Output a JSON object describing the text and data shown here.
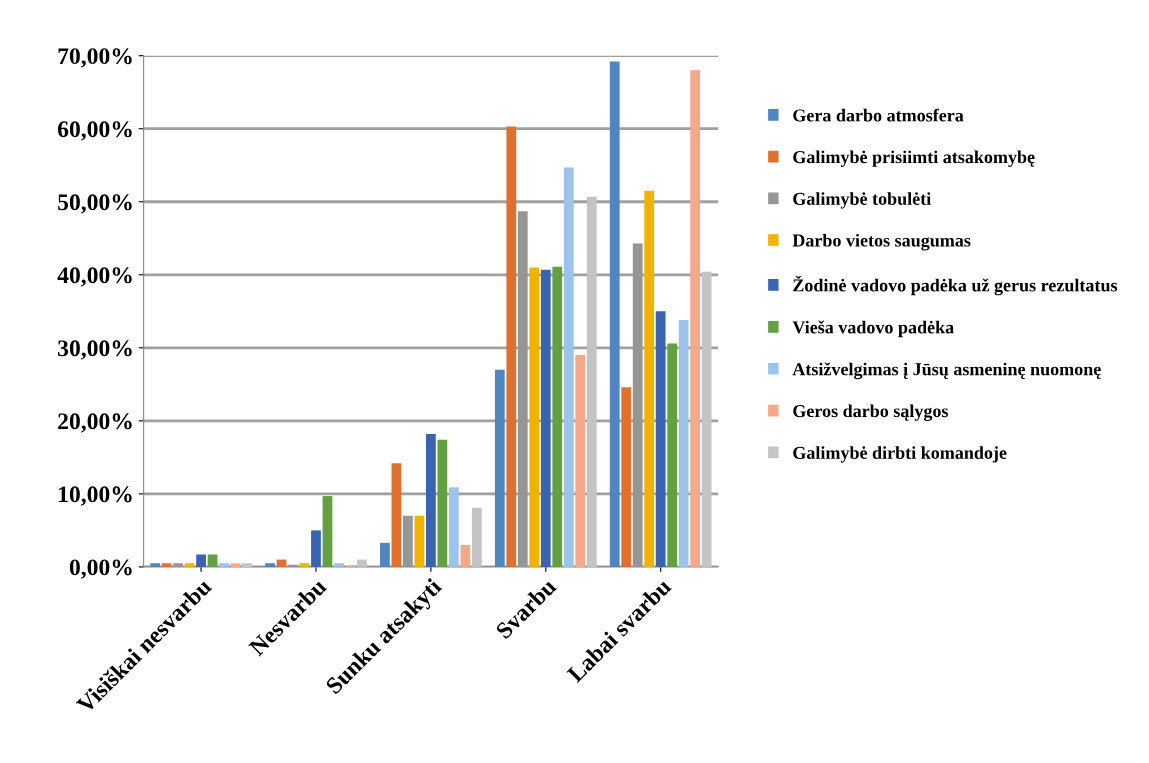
{
  "chart_data": {
    "type": "bar",
    "categories": [
      "Visiškai nesvarbu",
      "Nesvarbu",
      "Sunku atsakyti",
      "Svarbu",
      "Labai svarbu"
    ],
    "series": [
      {
        "name": "Gera darbo atmosfera",
        "color": "#4f86c0",
        "values": [
          0.5,
          0.5,
          3.3,
          27,
          69.2
        ]
      },
      {
        "name": "Galimybė prisiimti atsakomybę",
        "color": "#e0702e",
        "values": [
          0.5,
          1,
          14.2,
          60.3,
          24.6
        ]
      },
      {
        "name": "Galimybė tobulėti",
        "color": "#969696",
        "values": [
          0.5,
          0.3,
          7,
          48.7,
          44.3
        ]
      },
      {
        "name": "Darbo vietos saugumas",
        "color": "#f0b400",
        "values": [
          0.5,
          0.5,
          7,
          41,
          51.5
        ]
      },
      {
        "name": "Žodinė vadovo padėka už gerus rezultatus",
        "color": "#3a64b0",
        "values": [
          1.7,
          5,
          18.2,
          40.7,
          35
        ]
      },
      {
        "name": "Vieša vadovo padėka",
        "color": "#62a042",
        "values": [
          1.7,
          9.7,
          17.4,
          41.1,
          30.6
        ]
      },
      {
        "name": "Atsižvelgimas į Jūsų asmeninę nuomonę",
        "color": "#9cc3ea",
        "values": [
          0.5,
          0.5,
          10.9,
          54.7,
          33.8
        ]
      },
      {
        "name": "Geros darbo sąlygos",
        "color": "#f6a98a",
        "values": [
          0.5,
          0.2,
          3,
          29,
          68
        ]
      },
      {
        "name": "Galimybė dirbti komandoje",
        "color": "#c4c4c4",
        "values": [
          0.5,
          1,
          8.1,
          50.7,
          40.4
        ]
      }
    ],
    "ylim": [
      0,
      70
    ],
    "yticks": [
      {
        "value": 0,
        "label": "0,00%"
      },
      {
        "value": 10,
        "label": "10,00%"
      },
      {
        "value": 20,
        "label": "20,00%"
      },
      {
        "value": 30,
        "label": "30,00%"
      },
      {
        "value": 40,
        "label": "40,00%"
      },
      {
        "value": 50,
        "label": "50,00%"
      },
      {
        "value": 60,
        "label": "60,00%"
      },
      {
        "value": 70,
        "label": "70,00%"
      }
    ],
    "grid": "y",
    "legend": "right"
  }
}
